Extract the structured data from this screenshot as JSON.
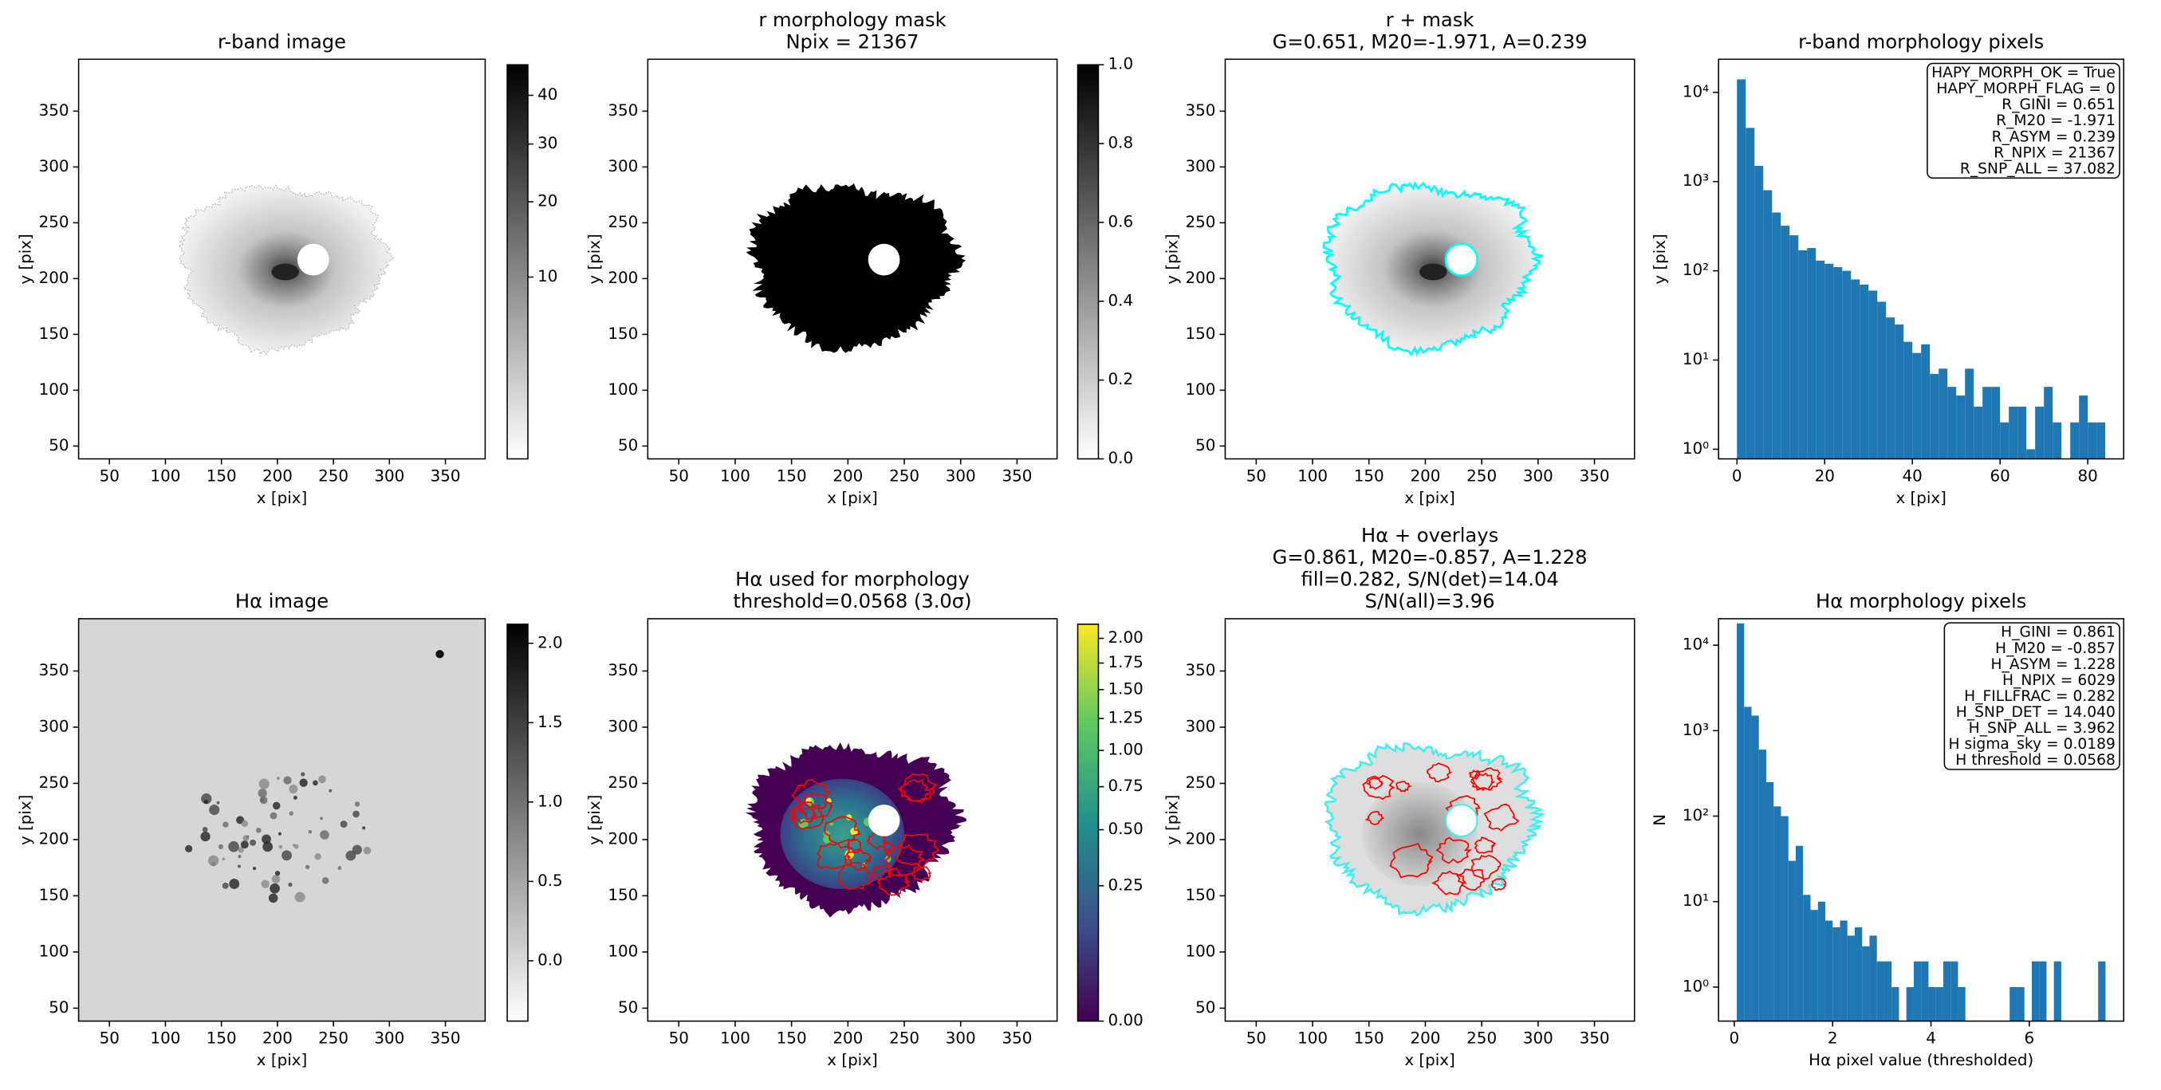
{
  "chart_data": [
    {
      "type": "image",
      "title": [
        "r-band image"
      ],
      "xlabel": "x [pix]",
      "ylabel": "y [pix]",
      "xlim": [
        22.5,
        385.5
      ],
      "ylim": [
        38.5,
        396.5
      ],
      "xticks": [
        50,
        100,
        150,
        200,
        250,
        300,
        350
      ],
      "yticks": [
        50,
        100,
        150,
        200,
        250,
        300,
        350
      ],
      "colorbar": {
        "lim": [
          0,
          47
        ],
        "scale": "sqrt",
        "colors": [
          "#ffffff",
          "#000000"
        ],
        "ticks": [
          10,
          20,
          30,
          40
        ]
      }
    },
    {
      "type": "image",
      "title": [
        "r morphology mask",
        "Npix = 21367"
      ],
      "xlabel": "x [pix]",
      "ylabel": "y [pix]",
      "xlim": [
        22.5,
        385.5
      ],
      "ylim": [
        38.5,
        396.5
      ],
      "xticks": [
        50,
        100,
        150,
        200,
        250,
        300,
        350
      ],
      "yticks": [
        50,
        100,
        150,
        200,
        250,
        300,
        350
      ],
      "colorbar": {
        "lim": [
          0,
          1
        ],
        "scale": "linear",
        "colors": [
          "#ffffff",
          "#000000"
        ],
        "ticks": [
          {
            "value": 0,
            "label": "0.0"
          },
          {
            "value": 0.2,
            "label": "0.2"
          },
          {
            "value": 0.4,
            "label": "0.4"
          },
          {
            "value": 0.6,
            "label": "0.6"
          },
          {
            "value": 0.8,
            "label": "0.8"
          },
          {
            "value": 1,
            "label": "1.0"
          }
        ]
      }
    },
    {
      "type": "image",
      "title": [
        "r + mask",
        "G=0.651, M20=-1.971, A=0.239"
      ],
      "xlabel": "x [pix]",
      "ylabel": "y [pix]",
      "xlim": [
        22.5,
        385.5
      ],
      "ylim": [
        38.5,
        396.5
      ],
      "xticks": [
        50,
        100,
        150,
        200,
        250,
        300,
        350
      ],
      "yticks": [
        50,
        100,
        150,
        200,
        250,
        300,
        350
      ]
    },
    {
      "type": "histogram",
      "title": [
        "r-band morphology pixels"
      ],
      "xlabel": "x [pix]",
      "ylabel": "y [pix]",
      "color": "#1f77b4",
      "log_y": true,
      "bins": [
        0,
        2,
        4,
        6,
        8,
        10,
        12,
        14,
        16,
        18,
        20,
        22,
        24,
        26,
        28,
        30,
        32,
        34,
        36,
        38,
        40,
        42,
        44,
        46,
        48,
        50,
        52,
        54,
        56,
        58,
        60,
        62,
        64,
        66,
        68,
        70,
        72,
        74,
        76,
        78,
        80,
        82,
        84
      ],
      "values": [
        14000,
        4000,
        1500,
        800,
        450,
        320,
        250,
        170,
        180,
        130,
        120,
        110,
        100,
        80,
        70,
        60,
        45,
        30,
        25,
        16,
        12,
        15,
        7,
        8,
        5,
        4,
        8,
        3,
        5,
        5,
        2,
        3,
        3,
        1,
        3,
        5,
        2,
        0,
        2,
        4,
        2,
        2
      ],
      "xlim": [
        -4.2,
        88.2
      ],
      "ylim": [
        0.78,
        23500
      ],
      "xticks": [
        0,
        20,
        40,
        60,
        80
      ],
      "yticks": [
        {
          "value": 1,
          "label": "10⁰"
        },
        {
          "value": 10,
          "label": "10¹"
        },
        {
          "value": 100,
          "label": "10²"
        },
        {
          "value": 1000,
          "label": "10³"
        },
        {
          "value": 10000,
          "label": "10⁴"
        }
      ],
      "annotation": [
        "HAPY_MORPH_OK = True",
        "HAPY_MORPH_FLAG = 0",
        "R_GINI = 0.651",
        "R_M20 = -1.971",
        "R_ASYM = 0.239",
        "R_NPIX = 21367",
        "R_SNP_ALL = 37.082"
      ]
    },
    {
      "type": "image",
      "title": [
        "Hα image"
      ],
      "xlabel": "x [pix]",
      "ylabel": "y [pix]",
      "xlim": [
        22.5,
        385.5
      ],
      "ylim": [
        38.5,
        396.5
      ],
      "xticks": [
        50,
        100,
        150,
        200,
        250,
        300,
        350
      ],
      "yticks": [
        50,
        100,
        150,
        200,
        250,
        300,
        350
      ],
      "colorbar": {
        "lim": [
          -0.38,
          2.12
        ],
        "scale": "linear",
        "colors": [
          "#ffffff",
          "#000000"
        ],
        "ticks": [
          {
            "value": 0,
            "label": "0.0"
          },
          {
            "value": 0.5,
            "label": "0.5"
          },
          {
            "value": 1,
            "label": "1.0"
          },
          {
            "value": 1.5,
            "label": "1.5"
          },
          {
            "value": 2,
            "label": "2.0"
          }
        ]
      }
    },
    {
      "type": "image",
      "title": [
        "Hα used for morphology",
        "threshold=0.0568 (3.0σ)"
      ],
      "xlabel": "x [pix]",
      "ylabel": "y [pix]",
      "xlim": [
        22.5,
        385.5
      ],
      "ylim": [
        38.5,
        396.5
      ],
      "xticks": [
        50,
        100,
        150,
        200,
        250,
        300,
        350
      ],
      "yticks": [
        50,
        100,
        150,
        200,
        250,
        300,
        350
      ],
      "colorbar": {
        "lim": [
          0,
          2.15
        ],
        "scale": "sqrt",
        "colors": [
          "#440154",
          "#3b528b",
          "#21918c",
          "#5ec962",
          "#fde725"
        ],
        "ticks": [
          {
            "value": 0,
            "label": "0.00"
          },
          {
            "value": 0.25,
            "label": "0.25"
          },
          {
            "value": 0.5,
            "label": "0.50"
          },
          {
            "value": 0.75,
            "label": "0.75"
          },
          {
            "value": 1,
            "label": "1.00"
          },
          {
            "value": 1.25,
            "label": "1.25"
          },
          {
            "value": 1.5,
            "label": "1.50"
          },
          {
            "value": 1.75,
            "label": "1.75"
          },
          {
            "value": 2,
            "label": "2.00"
          }
        ]
      }
    },
    {
      "type": "image",
      "title": [
        "Hα + overlays",
        "G=0.861, M20=-0.857, A=1.228",
        "fill=0.282, S/N(det)=14.04",
        "S/N(all)=3.96"
      ],
      "xlabel": "x [pix]",
      "ylabel": "y [pix]",
      "xlim": [
        22.5,
        385.5
      ],
      "ylim": [
        38.5,
        396.5
      ],
      "xticks": [
        50,
        100,
        150,
        200,
        250,
        300,
        350
      ],
      "yticks": [
        50,
        100,
        150,
        200,
        250,
        300,
        350
      ]
    },
    {
      "type": "histogram",
      "title": [
        "Hα morphology pixels"
      ],
      "xlabel": "Hα pixel value (thresholded)",
      "ylabel": "N",
      "color": "#1f77b4",
      "log_y": true,
      "bins": [
        0.05,
        0.2,
        0.35,
        0.5,
        0.65,
        0.8,
        0.95,
        1.1,
        1.25,
        1.4,
        1.55,
        1.7,
        1.85,
        2,
        2.15,
        2.3,
        2.45,
        2.6,
        2.75,
        2.9,
        3.05,
        3.2,
        3.35,
        3.5,
        3.65,
        3.8,
        3.95,
        4.1,
        4.25,
        4.4,
        4.55,
        4.7,
        4.85,
        5,
        5.15,
        5.3,
        5.45,
        5.6,
        5.75,
        5.9,
        6.05,
        6.2,
        6.35,
        6.5,
        6.65,
        6.8,
        6.95,
        7.1,
        7.25,
        7.4,
        7.55
      ],
      "values": [
        18000,
        1900,
        1500,
        600,
        250,
        130,
        100,
        30,
        45,
        12,
        8,
        10,
        6,
        5,
        6,
        4,
        5,
        3,
        4,
        2,
        2,
        1,
        0,
        1,
        2,
        2,
        1,
        1,
        2,
        2,
        1,
        0,
        0,
        0,
        0,
        0,
        0,
        1,
        1,
        0,
        2,
        2,
        0,
        2,
        0,
        0,
        0,
        0,
        0,
        2
      ],
      "xlim": [
        -0.32,
        7.92
      ],
      "ylim": [
        0.4,
        20400
      ],
      "xticks": [
        0,
        2,
        4,
        6
      ],
      "yticks": [
        {
          "value": 1,
          "label": "10⁰"
        },
        {
          "value": 10,
          "label": "10¹"
        },
        {
          "value": 100,
          "label": "10²"
        },
        {
          "value": 1000,
          "label": "10³"
        },
        {
          "value": 10000,
          "label": "10⁴"
        }
      ],
      "annotation": [
        "H_GINI = 0.861",
        "H_M20 = -0.857",
        "H_ASYM = 1.228",
        "H_NPIX = 6029",
        "H_FILLFRAC = 0.282",
        "H_SNP_DET = 14.040",
        "H_SNP_ALL = 3.962",
        "H sigma_sky = 0.0189",
        "H threshold = 0.0568"
      ]
    }
  ]
}
